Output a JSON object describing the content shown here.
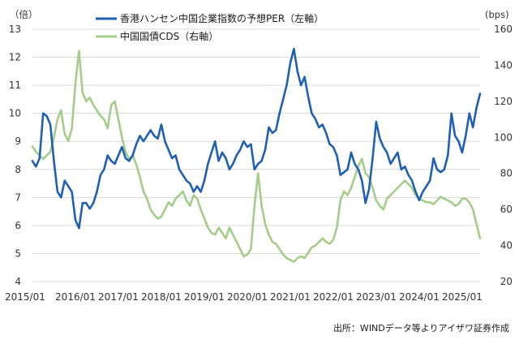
{
  "chart_data": {
    "type": "line",
    "left_unit": "（倍）",
    "right_unit": "(bps)",
    "source_note": "出所：WINDデータ等よりアイザワ証券作成",
    "left_ylim": [
      4,
      13
    ],
    "left_ticks": [
      "4",
      "5",
      "6",
      "7",
      "8",
      "9",
      "10",
      "11",
      "12",
      "13"
    ],
    "right_ylim": [
      20,
      160
    ],
    "right_ticks": [
      "20",
      "40",
      "60",
      "80",
      "100",
      "120",
      "140",
      "160"
    ],
    "x_ticks": [
      "2015/01",
      "2016/01",
      "2017/01",
      "2018/01",
      "2019/01",
      "2020/01",
      "2021/01",
      "2022/01",
      "2023/01",
      "2024/01",
      "2025/01"
    ],
    "x_range": [
      "2015-01",
      "2025-06"
    ],
    "grid": "horizontal",
    "legend_position": "top-center",
    "series": [
      {
        "name": "香港ハンセン中国企業指数の予想PER（左軸）",
        "axis": "left",
        "color": "#1f5fb4",
        "points": [
          [
            "2015-01",
            8.3
          ],
          [
            "2015-02",
            8.1
          ],
          [
            "2015-03",
            8.4
          ],
          [
            "2015-04",
            10.0
          ],
          [
            "2015-05",
            9.9
          ],
          [
            "2015-06",
            9.6
          ],
          [
            "2015-07",
            8.3
          ],
          [
            "2015-08",
            7.2
          ],
          [
            "2015-09",
            7.0
          ],
          [
            "2015-10",
            7.6
          ],
          [
            "2015-11",
            7.4
          ],
          [
            "2015-12",
            7.2
          ],
          [
            "2016-01",
            6.2
          ],
          [
            "2016-02",
            5.9
          ],
          [
            "2016-03",
            6.8
          ],
          [
            "2016-04",
            6.8
          ],
          [
            "2016-05",
            6.6
          ],
          [
            "2016-06",
            6.8
          ],
          [
            "2016-07",
            7.2
          ],
          [
            "2016-08",
            7.8
          ],
          [
            "2016-09",
            8.0
          ],
          [
            "2016-10",
            8.5
          ],
          [
            "2016-11",
            8.3
          ],
          [
            "2016-12",
            8.2
          ],
          [
            "2017-01",
            8.5
          ],
          [
            "2017-02",
            8.8
          ],
          [
            "2017-03",
            8.4
          ],
          [
            "2017-04",
            8.3
          ],
          [
            "2017-05",
            8.5
          ],
          [
            "2017-06",
            8.9
          ],
          [
            "2017-07",
            9.2
          ],
          [
            "2017-08",
            9.0
          ],
          [
            "2017-09",
            9.2
          ],
          [
            "2017-10",
            9.4
          ],
          [
            "2017-11",
            9.2
          ],
          [
            "2017-12",
            9.1
          ],
          [
            "2018-01",
            9.6
          ],
          [
            "2018-02",
            9.0
          ],
          [
            "2018-03",
            8.7
          ],
          [
            "2018-04",
            8.4
          ],
          [
            "2018-05",
            8.5
          ],
          [
            "2018-06",
            8.0
          ],
          [
            "2018-07",
            7.8
          ],
          [
            "2018-08",
            7.6
          ],
          [
            "2018-09",
            7.5
          ],
          [
            "2018-10",
            7.2
          ],
          [
            "2018-11",
            7.4
          ],
          [
            "2018-12",
            7.2
          ],
          [
            "2019-01",
            7.6
          ],
          [
            "2019-02",
            8.2
          ],
          [
            "2019-03",
            8.6
          ],
          [
            "2019-04",
            9.0
          ],
          [
            "2019-05",
            8.3
          ],
          [
            "2019-06",
            8.6
          ],
          [
            "2019-07",
            8.4
          ],
          [
            "2019-08",
            8.0
          ],
          [
            "2019-09",
            8.2
          ],
          [
            "2019-10",
            8.5
          ],
          [
            "2019-11",
            8.7
          ],
          [
            "2019-12",
            9.0
          ],
          [
            "2020-01",
            8.8
          ],
          [
            "2020-02",
            8.9
          ],
          [
            "2020-03",
            8.0
          ],
          [
            "2020-04",
            8.2
          ],
          [
            "2020-05",
            8.3
          ],
          [
            "2020-06",
            8.7
          ],
          [
            "2020-07",
            9.5
          ],
          [
            "2020-08",
            9.3
          ],
          [
            "2020-09",
            9.4
          ],
          [
            "2020-10",
            10.0
          ],
          [
            "2020-11",
            10.5
          ],
          [
            "2020-12",
            11.0
          ],
          [
            "2021-01",
            11.8
          ],
          [
            "2021-02",
            12.3
          ],
          [
            "2021-03",
            11.5
          ],
          [
            "2021-04",
            11.0
          ],
          [
            "2021-05",
            11.3
          ],
          [
            "2021-06",
            10.6
          ],
          [
            "2021-07",
            10.0
          ],
          [
            "2021-08",
            9.8
          ],
          [
            "2021-09",
            9.5
          ],
          [
            "2021-10",
            9.6
          ],
          [
            "2021-11",
            9.3
          ],
          [
            "2021-12",
            8.9
          ],
          [
            "2022-01",
            8.8
          ],
          [
            "2022-02",
            8.5
          ],
          [
            "2022-03",
            7.8
          ],
          [
            "2022-04",
            7.9
          ],
          [
            "2022-05",
            8.0
          ],
          [
            "2022-06",
            8.6
          ],
          [
            "2022-07",
            8.2
          ],
          [
            "2022-08",
            8.0
          ],
          [
            "2022-09",
            7.6
          ],
          [
            "2022-10",
            6.8
          ],
          [
            "2022-11",
            7.3
          ],
          [
            "2022-12",
            8.4
          ],
          [
            "2023-01",
            9.7
          ],
          [
            "2023-02",
            9.1
          ],
          [
            "2023-03",
            8.8
          ],
          [
            "2023-04",
            8.6
          ],
          [
            "2023-05",
            8.2
          ],
          [
            "2023-06",
            8.4
          ],
          [
            "2023-07",
            8.6
          ],
          [
            "2023-08",
            8.0
          ],
          [
            "2023-09",
            8.1
          ],
          [
            "2023-10",
            7.8
          ],
          [
            "2023-11",
            7.6
          ],
          [
            "2023-12",
            7.2
          ],
          [
            "2024-01",
            6.9
          ],
          [
            "2024-02",
            7.2
          ],
          [
            "2024-03",
            7.4
          ],
          [
            "2024-04",
            7.6
          ],
          [
            "2024-05",
            8.4
          ],
          [
            "2024-06",
            8.0
          ],
          [
            "2024-07",
            7.9
          ],
          [
            "2024-08",
            8.0
          ],
          [
            "2024-09",
            8.5
          ],
          [
            "2024-10",
            10.0
          ],
          [
            "2024-11",
            9.2
          ],
          [
            "2024-12",
            9.0
          ],
          [
            "2025-01",
            8.6
          ],
          [
            "2025-02",
            9.2
          ],
          [
            "2025-03",
            10.0
          ],
          [
            "2025-04",
            9.5
          ],
          [
            "2025-05",
            10.2
          ],
          [
            "2025-06",
            10.7
          ]
        ]
      },
      {
        "name": "中国国債CDS（右軸）",
        "axis": "right",
        "color": "#a6cc8c",
        "points": [
          [
            "2015-01",
            95
          ],
          [
            "2015-02",
            92
          ],
          [
            "2015-03",
            90
          ],
          [
            "2015-04",
            88
          ],
          [
            "2015-05",
            90
          ],
          [
            "2015-06",
            92
          ],
          [
            "2015-07",
            100
          ],
          [
            "2015-08",
            110
          ],
          [
            "2015-09",
            115
          ],
          [
            "2015-10",
            102
          ],
          [
            "2015-11",
            98
          ],
          [
            "2015-12",
            105
          ],
          [
            "2016-01",
            130
          ],
          [
            "2016-02",
            148
          ],
          [
            "2016-03",
            125
          ],
          [
            "2016-04",
            120
          ],
          [
            "2016-05",
            122
          ],
          [
            "2016-06",
            118
          ],
          [
            "2016-07",
            115
          ],
          [
            "2016-08",
            112
          ],
          [
            "2016-09",
            110
          ],
          [
            "2016-10",
            105
          ],
          [
            "2016-11",
            118
          ],
          [
            "2016-12",
            120
          ],
          [
            "2017-01",
            110
          ],
          [
            "2017-02",
            100
          ],
          [
            "2017-03",
            92
          ],
          [
            "2017-04",
            88
          ],
          [
            "2017-05",
            90
          ],
          [
            "2017-06",
            85
          ],
          [
            "2017-07",
            78
          ],
          [
            "2017-08",
            70
          ],
          [
            "2017-09",
            66
          ],
          [
            "2017-10",
            60
          ],
          [
            "2017-11",
            57
          ],
          [
            "2017-12",
            55
          ],
          [
            "2018-01",
            56
          ],
          [
            "2018-02",
            60
          ],
          [
            "2018-03",
            64
          ],
          [
            "2018-04",
            62
          ],
          [
            "2018-05",
            66
          ],
          [
            "2018-06",
            68
          ],
          [
            "2018-07",
            70
          ],
          [
            "2018-08",
            65
          ],
          [
            "2018-09",
            62
          ],
          [
            "2018-10",
            68
          ],
          [
            "2018-11",
            66
          ],
          [
            "2018-12",
            60
          ],
          [
            "2019-01",
            55
          ],
          [
            "2019-02",
            50
          ],
          [
            "2019-03",
            47
          ],
          [
            "2019-04",
            46
          ],
          [
            "2019-05",
            50
          ],
          [
            "2019-06",
            47
          ],
          [
            "2019-07",
            44
          ],
          [
            "2019-08",
            50
          ],
          [
            "2019-09",
            46
          ],
          [
            "2019-10",
            42
          ],
          [
            "2019-11",
            38
          ],
          [
            "2019-12",
            34
          ],
          [
            "2020-01",
            35
          ],
          [
            "2020-02",
            38
          ],
          [
            "2020-03",
            62
          ],
          [
            "2020-04",
            80
          ],
          [
            "2020-05",
            62
          ],
          [
            "2020-06",
            52
          ],
          [
            "2020-07",
            46
          ],
          [
            "2020-08",
            42
          ],
          [
            "2020-09",
            41
          ],
          [
            "2020-10",
            38
          ],
          [
            "2020-11",
            35
          ],
          [
            "2020-12",
            33
          ],
          [
            "2021-01",
            32
          ],
          [
            "2021-02",
            31
          ],
          [
            "2021-03",
            33
          ],
          [
            "2021-04",
            34
          ],
          [
            "2021-05",
            33
          ],
          [
            "2021-06",
            36
          ],
          [
            "2021-07",
            39
          ],
          [
            "2021-08",
            40
          ],
          [
            "2021-09",
            42
          ],
          [
            "2021-10",
            44
          ],
          [
            "2021-11",
            42
          ],
          [
            "2021-12",
            41
          ],
          [
            "2022-01",
            43
          ],
          [
            "2022-02",
            50
          ],
          [
            "2022-03",
            65
          ],
          [
            "2022-04",
            70
          ],
          [
            "2022-05",
            68
          ],
          [
            "2022-06",
            72
          ],
          [
            "2022-07",
            78
          ],
          [
            "2022-08",
            84
          ],
          [
            "2022-09",
            88
          ],
          [
            "2022-10",
            80
          ],
          [
            "2022-11",
            78
          ],
          [
            "2022-12",
            72
          ],
          [
            "2023-01",
            65
          ],
          [
            "2023-02",
            62
          ],
          [
            "2023-03",
            60
          ],
          [
            "2023-04",
            66
          ],
          [
            "2023-05",
            68
          ],
          [
            "2023-06",
            70
          ],
          [
            "2023-07",
            72
          ],
          [
            "2023-08",
            74
          ],
          [
            "2023-09",
            76
          ],
          [
            "2023-10",
            74
          ],
          [
            "2023-11",
            72
          ],
          [
            "2023-12",
            68
          ],
          [
            "2024-01",
            66
          ],
          [
            "2024-02",
            65
          ],
          [
            "2024-03",
            64
          ],
          [
            "2024-04",
            64
          ],
          [
            "2024-05",
            63
          ],
          [
            "2024-06",
            65
          ],
          [
            "2024-07",
            67
          ],
          [
            "2024-08",
            66
          ],
          [
            "2024-09",
            65
          ],
          [
            "2024-10",
            64
          ],
          [
            "2024-11",
            62
          ],
          [
            "2024-12",
            63
          ],
          [
            "2025-01",
            66
          ],
          [
            "2025-02",
            66
          ],
          [
            "2025-03",
            64
          ],
          [
            "2025-04",
            60
          ],
          [
            "2025-05",
            52
          ],
          [
            "2025-06",
            44
          ]
        ]
      }
    ]
  }
}
